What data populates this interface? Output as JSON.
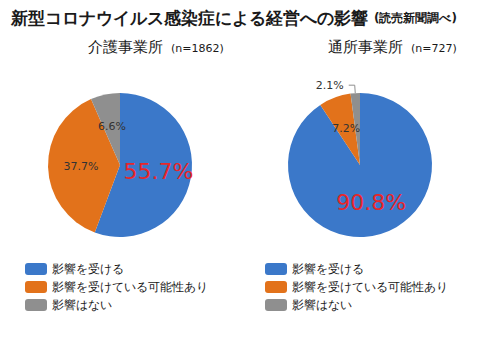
{
  "title": "新型コロナウイルス感染症による経営への影響",
  "source": "(読売新聞調べ)",
  "chart_data": [
    {
      "type": "pie",
      "title": "介護事業所",
      "subtitle": "(n=1862)",
      "categories": [
        "影響を受ける",
        "影響を受けている可能性あり",
        "影響はない"
      ],
      "values": [
        55.7,
        37.7,
        6.6
      ],
      "value_labels": [
        "55.7%",
        "37.7%",
        "6.6%"
      ],
      "colors": [
        "#3b78c9",
        "#e2721b",
        "#8f8f8f"
      ],
      "data_labels": true,
      "legend": "bottom"
    },
    {
      "type": "pie",
      "title": "通所事業所",
      "subtitle": "(n=727)",
      "categories": [
        "影響を受ける",
        "影響を受けている可能性あり",
        "影響はない"
      ],
      "values": [
        90.8,
        7.2,
        2.1
      ],
      "value_labels": [
        "90.8%",
        "7.2%",
        "2.1%"
      ],
      "colors": [
        "#3b78c9",
        "#e2721b",
        "#8f8f8f"
      ],
      "data_labels": true,
      "legend": "bottom"
    }
  ]
}
